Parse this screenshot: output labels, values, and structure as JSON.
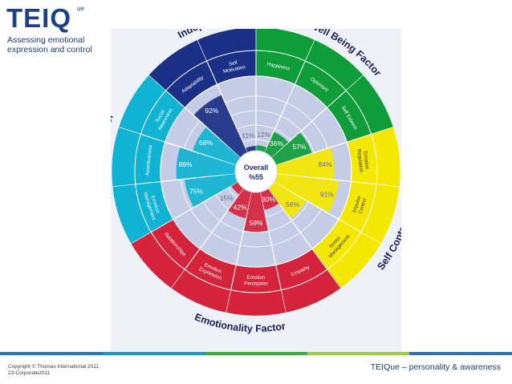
{
  "header": {
    "logo_text": "TEIQ",
    "logo_superscript": "ue",
    "tagline_lines": [
      "Assessing emotional",
      "expression and control"
    ]
  },
  "wheel": {
    "center_title": "Overall",
    "center_value": "%55",
    "factors": [
      {
        "name": "Independent Facets",
        "color": "#1a2f86"
      },
      {
        "name": "Well Being Factor",
        "color": "#0f9d3a"
      },
      {
        "name": "Self Control Factor",
        "color": "#f4e800"
      },
      {
        "name": "Emotionality Factor",
        "color": "#d6233c"
      },
      {
        "name": "Sociability Factor",
        "color": "#10b3d3"
      }
    ],
    "facets": [
      {
        "label": [
          "Self",
          "Motivation"
        ],
        "score": "11%",
        "fraction": 0.11,
        "color": "#1a2f86"
      },
      {
        "label": [
          "Happiness"
        ],
        "score": "12%",
        "fraction": 0.12,
        "color": "#0f9d3a"
      },
      {
        "label": [
          "Optimism"
        ],
        "score": "36%",
        "fraction": 0.36,
        "color": "#0f9d3a"
      },
      {
        "label": [
          "Self Esteem"
        ],
        "score": "57%",
        "fraction": 0.57,
        "color": "#0f9d3a"
      },
      {
        "label": [
          "Emotion",
          "Regulation"
        ],
        "score": "84%",
        "fraction": 0.84,
        "color": "#f4e800"
      },
      {
        "label": [
          "Impulse",
          "Control"
        ],
        "score": "91%",
        "fraction": 0.91,
        "color": "#f4e800"
      },
      {
        "label": [
          "Stress",
          "Management"
        ],
        "score": "56%",
        "fraction": 0.56,
        "color": "#f4e800"
      },
      {
        "label": [
          "Empathy"
        ],
        "score": "30%",
        "fraction": 0.3,
        "color": "#d6233c"
      },
      {
        "label": [
          "Emotion",
          "Perception"
        ],
        "score": "59%",
        "fraction": 0.59,
        "color": "#d6233c"
      },
      {
        "label": [
          "Emotion",
          "Expression"
        ],
        "score": "42%",
        "fraction": 0.42,
        "color": "#d6233c"
      },
      {
        "label": [
          "Relationships"
        ],
        "score": "15%",
        "fraction": 0.15,
        "color": "#d6233c"
      },
      {
        "label": [
          "Emotion",
          "Management"
        ],
        "score": "75%",
        "fraction": 0.75,
        "color": "#10b3d3"
      },
      {
        "label": [
          "Assertiveness"
        ],
        "score": "86%",
        "fraction": 0.86,
        "color": "#10b3d3"
      },
      {
        "label": [
          "Social",
          "Awareness"
        ],
        "score": "68%",
        "fraction": 0.68,
        "color": "#10b3d3"
      },
      {
        "label": [
          "Adaptability"
        ],
        "score": "92%",
        "fraction": 0.92,
        "color": "#1a2f86"
      }
    ]
  },
  "footer": {
    "copyright_lines": [
      "Copyright © Thomas International 2011",
      "23-Corporate2011"
    ],
    "title": "TEIQue – personality & awareness",
    "rule_colors": [
      "#1c7fc4",
      "#0fa0c8",
      "#3aae3a",
      "#9ccf3a",
      "#2e6fb7"
    ]
  }
}
